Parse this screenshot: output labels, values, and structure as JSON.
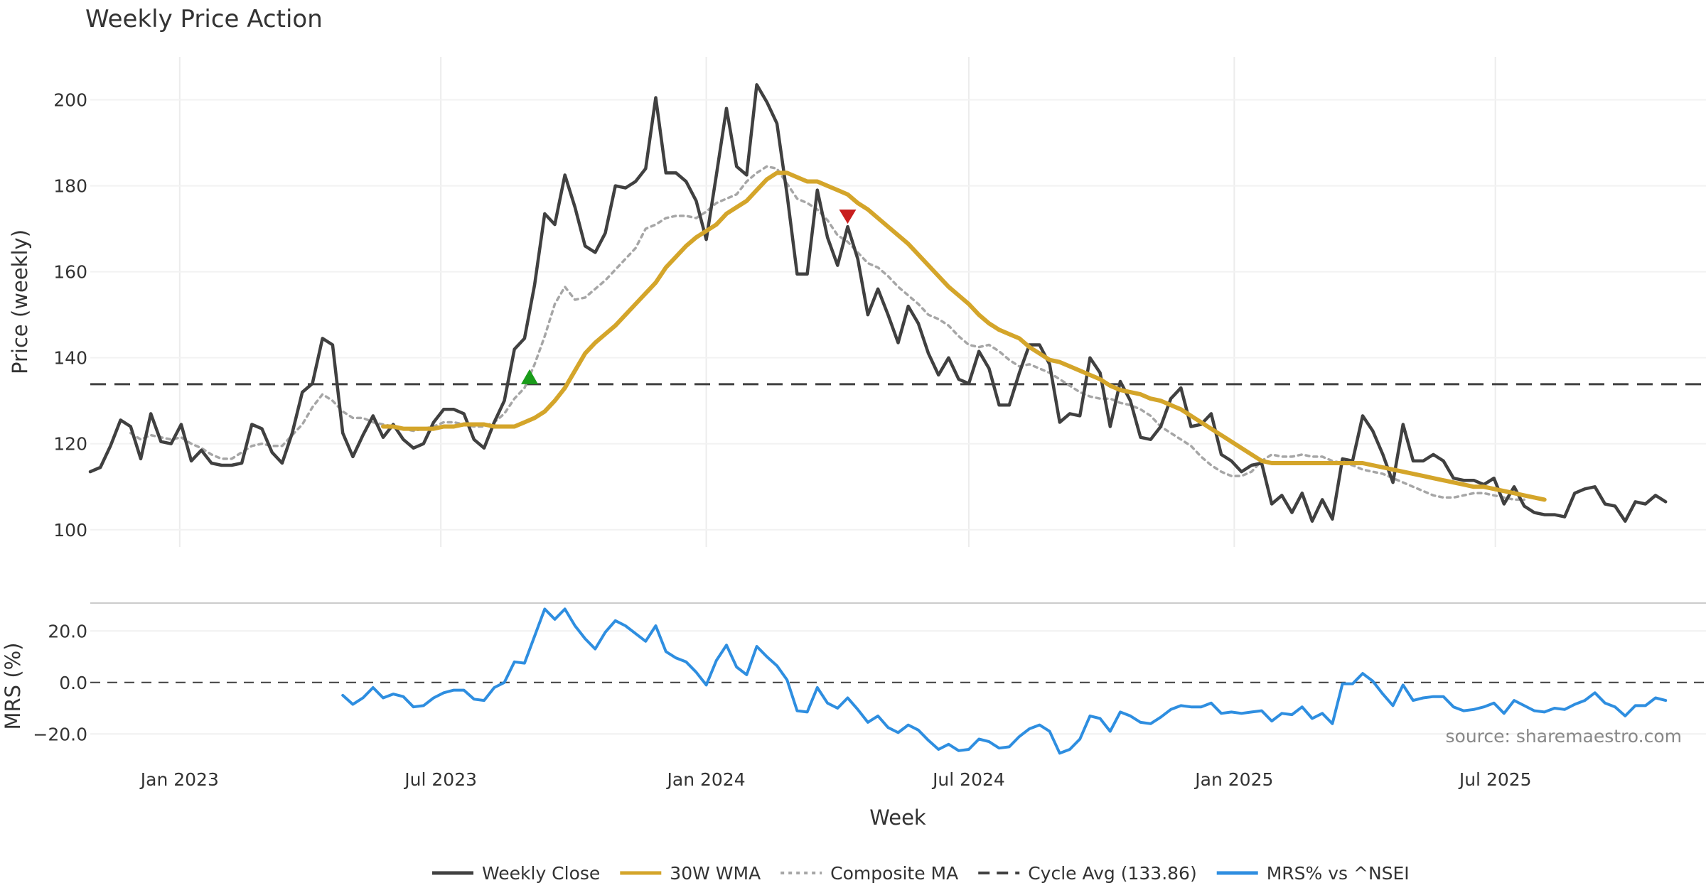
{
  "chart_data": {
    "type": "line",
    "title": "Weekly Price Action",
    "xlabel": "Week",
    "source_note": "source: sharemaestro.com",
    "x_ticks": [
      "Jan 2023",
      "Jul 2023",
      "Jan 2024",
      "Jul 2024",
      "Jan 2025",
      "Jul 2025"
    ],
    "x_range": [
      "2022-10-31",
      "2025-11-24"
    ],
    "x_tick_dates": [
      "2023-01-01",
      "2023-07-01",
      "2024-01-01",
      "2024-07-01",
      "2025-01-01",
      "2025-07-01"
    ],
    "price_panel": {
      "ylabel": "Price (weekly)",
      "ylim": [
        96,
        210
      ],
      "yticks": [
        "100",
        "120",
        "140",
        "160",
        "180",
        "200"
      ],
      "ytick_values": [
        100,
        120,
        140,
        160,
        180,
        200
      ],
      "cycle_avg": 133.86,
      "series": [
        {
          "name": "Weekly Close",
          "color": "#404040",
          "start_week": 0,
          "values": [
            113.5,
            114.5,
            119.5,
            125.5,
            124,
            116.5,
            127,
            120.5,
            120,
            124.5,
            116,
            118.5,
            115.5,
            115,
            115,
            115.5,
            124.5,
            123.5,
            118,
            115.5,
            122.5,
            132,
            134,
            144.5,
            143,
            122.5,
            117,
            122,
            126.5,
            121.5,
            124.5,
            121,
            119,
            120,
            125,
            128,
            128,
            127,
            121,
            119,
            125,
            130,
            142,
            144.5,
            157,
            173.5,
            171,
            182.5,
            175,
            166,
            164.5,
            169,
            180,
            179.5,
            181,
            184,
            200.5,
            183,
            183,
            181,
            176.5,
            167.5,
            182.5,
            198,
            184.5,
            182.5,
            203.5,
            199.5,
            194.5,
            178,
            159.5,
            159.5,
            179,
            168,
            161.5,
            170.5,
            163,
            150,
            156,
            150,
            143.5,
            152,
            148,
            141,
            136,
            140,
            135,
            134,
            141.5,
            137.5,
            129,
            129,
            136.5,
            143,
            143,
            138.5,
            125,
            127,
            126.5,
            140,
            136.5,
            124,
            134.5,
            130,
            121.5,
            121,
            124,
            130.5,
            133,
            124,
            124.5,
            127,
            117.5,
            116,
            113.5,
            115,
            115.5,
            106,
            108,
            104,
            108.5,
            102,
            107,
            102.5,
            116.5,
            116,
            126.5,
            123,
            117.5,
            111,
            124.5,
            116,
            116,
            117.5,
            116,
            112,
            111.5,
            111.5,
            110.5,
            112,
            106,
            110,
            105.5,
            104,
            103.5,
            103.5,
            103,
            108.5,
            109.5,
            110,
            106,
            105.5,
            102,
            106.5,
            106,
            108,
            106.5
          ]
        },
        {
          "name": "30W WMA",
          "color": "#d4a52a",
          "start_week": 29,
          "values": [
            124,
            124,
            123.5,
            123.5,
            123.5,
            123.5,
            124,
            124,
            124.5,
            124.5,
            124.5,
            124,
            124,
            124,
            125,
            126,
            127.5,
            130,
            133,
            137,
            141,
            143.5,
            145.5,
            147.5,
            150,
            152.5,
            155,
            157.5,
            161,
            163.5,
            166,
            168,
            169.5,
            171,
            173.5,
            175,
            176.5,
            179,
            181.5,
            183,
            183,
            182,
            181,
            181,
            180,
            179,
            178,
            176,
            174.5,
            172.5,
            170.5,
            168.5,
            166.5,
            164,
            161.5,
            159,
            156.5,
            154.5,
            152.5,
            150,
            148,
            146.5,
            145.5,
            144.5,
            142.5,
            141,
            139.5,
            139,
            138,
            137,
            136,
            135,
            133.5,
            132.5,
            132,
            131.5,
            130.5,
            130,
            129,
            128,
            126.5,
            125,
            123.5,
            122,
            120.5,
            119,
            117.5,
            116,
            115.5,
            115.5,
            115.5,
            115.5,
            115.5,
            115.5,
            115.5,
            115.5,
            115.5,
            115.5,
            115,
            114.5,
            114,
            113.5,
            113,
            112.5,
            112,
            111.5,
            111,
            110.5,
            110,
            110,
            109.5,
            109,
            108.5,
            108,
            107.5,
            107
          ]
        },
        {
          "name": "Composite MA",
          "color": "#a6a6a6",
          "start_week": 4,
          "values": [
            122.5,
            121,
            122,
            121.5,
            121,
            121.5,
            120,
            119,
            117.5,
            116.5,
            116.5,
            118,
            119.5,
            120,
            119.5,
            119.5,
            122,
            124.5,
            128.5,
            131.5,
            130,
            127.5,
            126,
            126,
            125,
            124.5,
            124,
            123.5,
            123,
            123.5,
            124,
            125,
            125,
            124.5,
            124,
            124,
            125,
            127,
            130.5,
            133,
            138.5,
            145,
            152.5,
            156.5,
            153.5,
            154,
            156,
            158,
            160.5,
            163,
            165.5,
            170,
            171,
            172.5,
            173,
            173,
            172.5,
            174,
            176,
            177,
            178,
            181,
            183,
            184.5,
            184,
            180.5,
            177,
            176,
            174.5,
            172,
            168.5,
            167,
            164.5,
            162,
            161,
            159,
            156.5,
            154.5,
            152.5,
            150,
            149,
            147.5,
            145,
            143,
            142.5,
            143,
            141.5,
            139.5,
            138,
            138.5,
            137.5,
            136.5,
            135,
            133.5,
            132,
            131,
            130.5,
            130.5,
            129.5,
            129,
            128,
            126.5,
            124,
            122.5,
            121,
            119.5,
            117,
            115,
            113.5,
            112.5,
            112.5,
            113.5,
            116,
            117.5,
            117,
            117,
            117.5,
            117,
            117,
            116,
            115.5,
            115,
            114,
            113.5,
            113,
            112,
            111,
            110,
            109,
            108,
            107.5,
            107.5,
            108,
            108.5,
            108.5,
            108,
            107.5,
            107,
            107
          ]
        }
      ],
      "markers": [
        {
          "type": "buy",
          "week": 43.5,
          "value": 135.5,
          "color": "#1a9c1a"
        },
        {
          "type": "sell",
          "week": 75,
          "value": 173,
          "color": "#c81e1e"
        }
      ]
    },
    "mrs_panel": {
      "ylabel": "MRS (%)",
      "ylim": [
        -26,
        30
      ],
      "yticks": [
        "20.0",
        "0.0",
        "−20.0"
      ],
      "ytick_values": [
        20,
        0,
        -20
      ],
      "series": [
        {
          "name": "MRS% vs ^NSEI",
          "color": "#2e8ee0",
          "start_week": 25,
          "values": [
            -5,
            -8.5,
            -6,
            -2,
            -6,
            -4.5,
            -5.5,
            -9.5,
            -9,
            -6,
            -4,
            -3,
            -3,
            -6.5,
            -7,
            -2,
            0,
            8,
            7.5,
            18,
            28.5,
            24.5,
            28.5,
            22,
            17,
            13,
            19.5,
            24,
            22,
            19,
            16,
            22,
            12,
            9.5,
            8,
            4,
            -1,
            8.5,
            14.5,
            6,
            3,
            14,
            10,
            6.5,
            1,
            -11,
            -11.5,
            -2,
            -8,
            -10,
            -6,
            -10.5,
            -15.5,
            -13,
            -17.5,
            -19.5,
            -16.5,
            -18.5,
            -22.5,
            -26,
            -24,
            -26.5,
            -26,
            -22,
            -23,
            -25.5,
            -25,
            -21,
            -18,
            -16.5,
            -19,
            -27.5,
            -26,
            -22,
            -13,
            -14,
            -19,
            -11.5,
            -13,
            -15.5,
            -16,
            -13.5,
            -10.5,
            -9,
            -9.5,
            -9.5,
            -8,
            -12,
            -11.5,
            -12,
            -11.5,
            -11,
            -15,
            -12,
            -12.5,
            -9.5,
            -14,
            -12,
            -16,
            -0.5,
            -0.5,
            3.5,
            0.5,
            -4.5,
            -9,
            -1,
            -7,
            -6,
            -5.5,
            -5.5,
            -9.5,
            -11,
            -10.5,
            -9.5,
            -8,
            -12,
            -7,
            -9,
            -11,
            -11.5,
            -10,
            -10.5,
            -8.5,
            -7,
            -4,
            -8,
            -9.5,
            -13,
            -9,
            -9,
            -6,
            -7
          ]
        }
      ]
    },
    "legend": [
      {
        "label": "Weekly Close",
        "style": "solid",
        "color": "#404040"
      },
      {
        "label": "30W WMA",
        "style": "solid",
        "color": "#d4a52a"
      },
      {
        "label": "Composite MA",
        "style": "dotted",
        "color": "#a6a6a6"
      },
      {
        "label": "Cycle Avg (133.86)",
        "style": "dashed",
        "color": "#404040"
      },
      {
        "label": "MRS% vs ^NSEI",
        "style": "solid",
        "color": "#2e8ee0"
      }
    ]
  }
}
